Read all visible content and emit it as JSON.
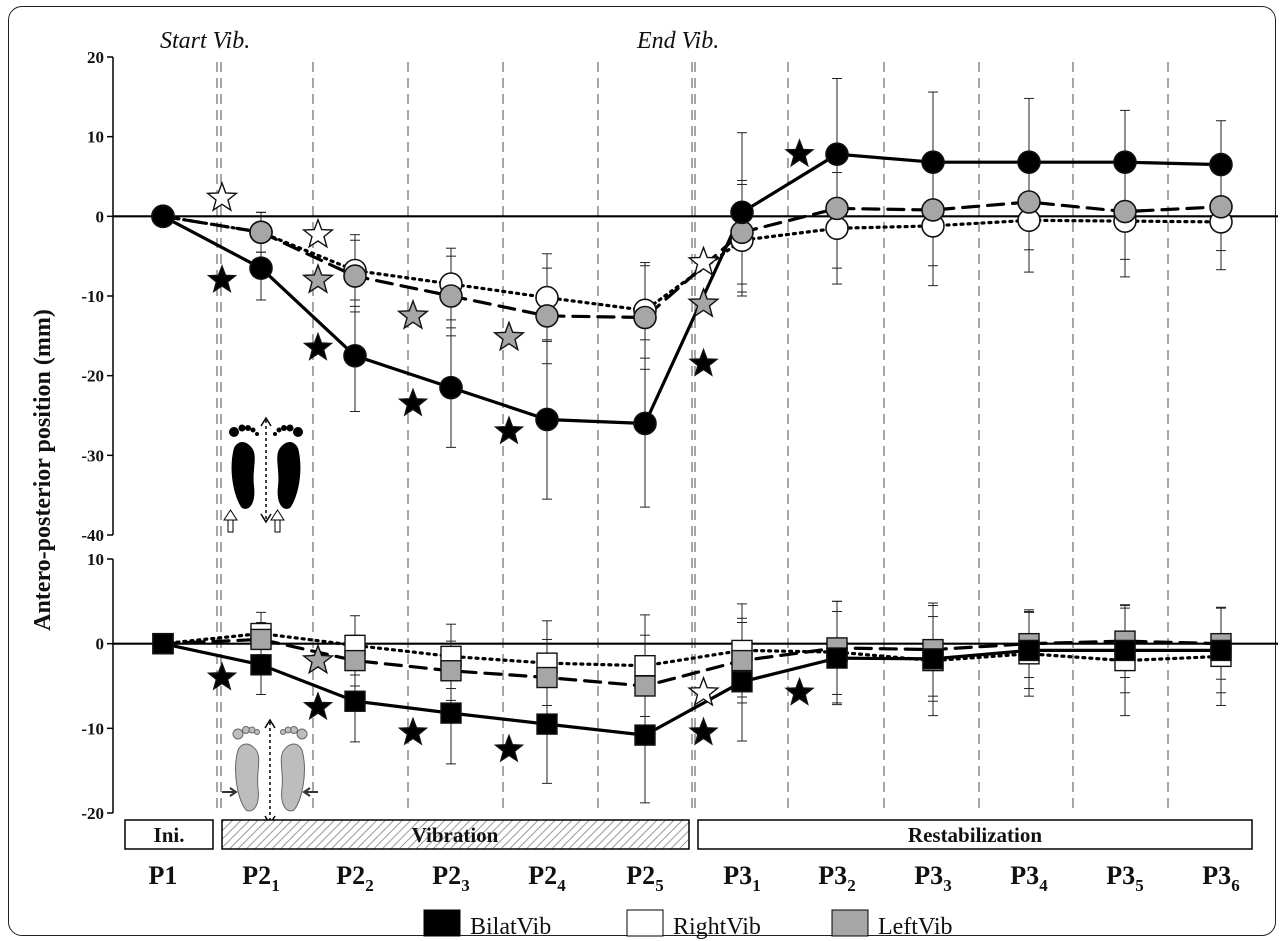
{
  "colors": {
    "bilat": "#000000",
    "right": "#ffffff",
    "left": "#a6a6a6",
    "stroke": "#111111",
    "guide": "#777777"
  },
  "ylabel": "Antero-posterior position (mm)",
  "start_label": "Start Vib.",
  "end_label": "End Vib.",
  "periods": [
    {
      "base": "P1",
      "sub": ""
    },
    {
      "base": "P2",
      "sub": "1"
    },
    {
      "base": "P2",
      "sub": "2"
    },
    {
      "base": "P2",
      "sub": "3"
    },
    {
      "base": "P2",
      "sub": "4"
    },
    {
      "base": "P2",
      "sub": "5"
    },
    {
      "base": "P3",
      "sub": "1"
    },
    {
      "base": "P3",
      "sub": "2"
    },
    {
      "base": "P3",
      "sub": "3"
    },
    {
      "base": "P3",
      "sub": "4"
    },
    {
      "base": "P3",
      "sub": "5"
    },
    {
      "base": "P3",
      "sub": "6"
    }
  ],
  "phase_bars": {
    "initial": "Ini.",
    "vibration": "Vibration",
    "restabilization": "Restabilization"
  },
  "legend": [
    {
      "key": "bilat",
      "label": "BilatVib"
    },
    {
      "key": "right",
      "label": "RightVib"
    },
    {
      "key": "left",
      "label": "LeftVib"
    }
  ],
  "chart_data": [
    {
      "type": "line",
      "panel": "top",
      "marker": "circle",
      "ylim": [
        -40,
        20
      ],
      "yticks": [
        20,
        10,
        0,
        -10,
        -20,
        -30,
        -40
      ],
      "series": [
        {
          "key": "bilat",
          "name": "BilatVib",
          "values": [
            0,
            -6.5,
            -17.5,
            -21.5,
            -25.5,
            -26,
            0.5,
            7.8,
            6.8,
            6.8,
            6.8,
            6.5
          ],
          "err": [
            0,
            4,
            7,
            7.5,
            10,
            10.5,
            10,
            9.5,
            8.8,
            8,
            6.5,
            5.5
          ]
        },
        {
          "key": "right",
          "name": "RightVib",
          "values": [
            0,
            -2,
            -6.8,
            -8.5,
            -10.2,
            -11.8,
            -3,
            -1.5,
            -1.2,
            -0.5,
            -0.6,
            -0.7
          ],
          "err": [
            0,
            2.5,
            4.5,
            4.5,
            5.5,
            6,
            7,
            7,
            7.5,
            6.5,
            7,
            6
          ]
        },
        {
          "key": "left",
          "name": "LeftVib",
          "values": [
            0,
            -2,
            -7.5,
            -10,
            -12.5,
            -12.7,
            -2,
            1,
            0.8,
            1.8,
            0.6,
            1.2
          ],
          "err": [
            0,
            2.5,
            4.5,
            5,
            6,
            6.5,
            6.5,
            7.5,
            7,
            6,
            6,
            5.5
          ]
        }
      ],
      "stars": [
        {
          "x": 1,
          "y": -8,
          "key": "bilat"
        },
        {
          "x": 2,
          "y": -16.5,
          "key": "bilat"
        },
        {
          "x": 3,
          "y": -23.5,
          "key": "bilat"
        },
        {
          "x": 4,
          "y": -27,
          "key": "bilat"
        },
        {
          "x": 6,
          "y": -18.5,
          "key": "bilat"
        },
        {
          "x": 7,
          "y": 7.8,
          "key": "bilat"
        },
        {
          "x": 1,
          "y": 2.3,
          "key": "right"
        },
        {
          "x": 2,
          "y": -2.3,
          "key": "right"
        },
        {
          "x": 6,
          "y": -5.8,
          "key": "right"
        },
        {
          "x": 2,
          "y": -8,
          "key": "left"
        },
        {
          "x": 3,
          "y": -12.5,
          "key": "left"
        },
        {
          "x": 4,
          "y": -15.2,
          "key": "left"
        },
        {
          "x": 6,
          "y": -11,
          "key": "left"
        }
      ]
    },
    {
      "type": "line",
      "panel": "bottom",
      "marker": "square",
      "ylim": [
        -20,
        10
      ],
      "yticks": [
        10,
        0,
        -10,
        -20
      ],
      "series": [
        {
          "key": "bilat",
          "name": "BilatVib",
          "values": [
            0,
            -2.5,
            -6.8,
            -8.2,
            -9.5,
            -10.8,
            -4.5,
            -1.7,
            -1.8,
            -0.8,
            -0.8,
            -0.8
          ],
          "err": [
            0,
            3.5,
            4.8,
            6,
            7,
            8,
            7,
            5.5,
            5,
            4.5,
            5,
            5
          ]
        },
        {
          "key": "right",
          "name": "RightVib",
          "values": [
            0,
            1.2,
            -0.2,
            -1.5,
            -2.3,
            -2.6,
            -0.8,
            -1,
            -2,
            -1.2,
            -2,
            -1.5
          ],
          "err": [
            0,
            2.5,
            3.5,
            3.8,
            5,
            6,
            5.5,
            6,
            6.5,
            5,
            6.5,
            5.8
          ]
        },
        {
          "key": "left",
          "name": "LeftVib",
          "values": [
            0,
            0.5,
            -2,
            -3.2,
            -4,
            -5,
            -2,
            -0.5,
            -0.7,
            0,
            0.3,
            0
          ],
          "err": [
            0,
            2,
            3,
            3.5,
            4.5,
            6,
            5,
            5.5,
            5.5,
            4,
            4.3,
            4.2
          ]
        }
      ],
      "stars": [
        {
          "x": 1,
          "y": -4,
          "key": "bilat"
        },
        {
          "x": 2,
          "y": -7.5,
          "key": "bilat"
        },
        {
          "x": 3,
          "y": -10.5,
          "key": "bilat"
        },
        {
          "x": 4,
          "y": -12.5,
          "key": "bilat"
        },
        {
          "x": 6,
          "y": -10.5,
          "key": "bilat"
        },
        {
          "x": 7,
          "y": -5.8,
          "key": "bilat"
        },
        {
          "x": 2,
          "y": -2,
          "key": "left"
        },
        {
          "x": 6,
          "y": -5.8,
          "key": "right"
        }
      ]
    }
  ]
}
